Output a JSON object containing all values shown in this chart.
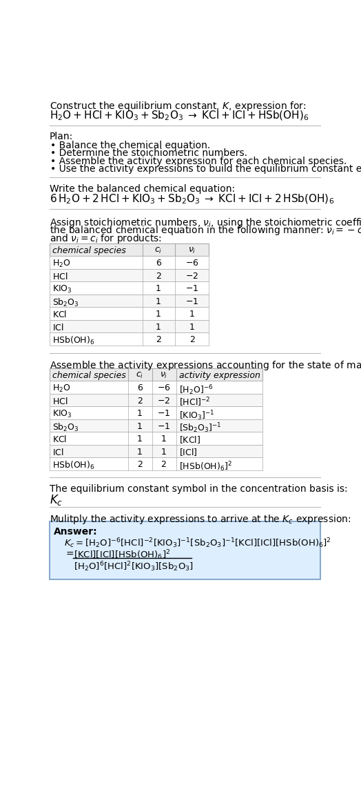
{
  "title_line1": "Construct the equilibrium constant, $K$, expression for:",
  "title_line2": "$\\mathrm{H_2O + HCl + KIO_3 + Sb_2O_3 \\;\\rightarrow\\; KCl + ICl + HSb(OH)_6}$",
  "plan_header": "Plan:",
  "plan_items": [
    "Balance the chemical equation.",
    "Determine the stoichiometric numbers.",
    "Assemble the activity expression for each chemical species.",
    "Use the activity expressions to build the equilibrium constant expression."
  ],
  "balanced_header": "Write the balanced chemical equation:",
  "balanced_eq": "$\\mathrm{6\\,H_2O + 2\\,HCl + KIO_3 + Sb_2O_3 \\;\\rightarrow\\; KCl + ICl + 2\\,HSb(OH)_6}$",
  "stoich_lines": [
    "Assign stoichiometric numbers, $\\nu_i$, using the stoichiometric coefficients, $c_i$, from",
    "the balanced chemical equation in the following manner: $\\nu_i = -c_i$ for reactants",
    "and $\\nu_i = c_i$ for products:"
  ],
  "table1_headers": [
    "chemical species",
    "$c_i$",
    "$\\nu_i$"
  ],
  "table1_data": [
    [
      "$\\mathrm{H_2O}$",
      "6",
      "$-6$"
    ],
    [
      "$\\mathrm{HCl}$",
      "2",
      "$-2$"
    ],
    [
      "$\\mathrm{KIO_3}$",
      "1",
      "$-1$"
    ],
    [
      "$\\mathrm{Sb_2O_3}$",
      "1",
      "$-1$"
    ],
    [
      "$\\mathrm{KCl}$",
      "1",
      "1"
    ],
    [
      "$\\mathrm{ICl}$",
      "1",
      "1"
    ],
    [
      "$\\mathrm{HSb(OH)_6}$",
      "2",
      "2"
    ]
  ],
  "activity_header": "Assemble the activity expressions accounting for the state of matter and $\\nu_i$:",
  "table2_headers": [
    "chemical species",
    "$c_i$",
    "$\\nu_i$",
    "activity expression"
  ],
  "table2_data": [
    [
      "$\\mathrm{H_2O}$",
      "6",
      "$-6$",
      "$[\\mathrm{H_2O}]^{-6}$"
    ],
    [
      "$\\mathrm{HCl}$",
      "2",
      "$-2$",
      "$[\\mathrm{HCl}]^{-2}$"
    ],
    [
      "$\\mathrm{KIO_3}$",
      "1",
      "$-1$",
      "$[\\mathrm{KIO_3}]^{-1}$"
    ],
    [
      "$\\mathrm{Sb_2O_3}$",
      "1",
      "$-1$",
      "$[\\mathrm{Sb_2O_3}]^{-1}$"
    ],
    [
      "$\\mathrm{KCl}$",
      "1",
      "1",
      "$[\\mathrm{KCl}]$"
    ],
    [
      "$\\mathrm{ICl}$",
      "1",
      "1",
      "$[\\mathrm{ICl}]$"
    ],
    [
      "$\\mathrm{HSb(OH)_6}$",
      "2",
      "2",
      "$[\\mathrm{HSb(OH)_6}]^2$"
    ]
  ],
  "kc_header": "The equilibrium constant symbol in the concentration basis is:",
  "kc_symbol": "$K_c$",
  "multiply_header": "Mulitply the activity expressions to arrive at the $K_c$ expression:",
  "answer_label": "Answer:",
  "answer_line1": "$K_c = [\\mathrm{H_2O}]^{-6}[\\mathrm{HCl}]^{-2}[\\mathrm{KIO_3}]^{-1}[\\mathrm{Sb_2O_3}]^{-1}[\\mathrm{KCl}][\\mathrm{ICl}][\\mathrm{HSb(OH)_6}]^2$",
  "answer_num": "$[\\mathrm{KCl}][\\mathrm{ICl}][\\mathrm{HSb(OH)_6}]^2$",
  "answer_den": "$[\\mathrm{H_2O}]^6[\\mathrm{HCl}]^2[\\mathrm{KIO_3}][\\mathrm{Sb_2O_3}]$",
  "bg_color": "#ffffff",
  "answer_box_bg": "#ddeeff",
  "answer_box_border": "#88aacc",
  "text_color": "#000000",
  "sep_color": "#bbbbbb",
  "table_hdr_bg": "#ebebeb",
  "table_border": "#aaaaaa",
  "font_size": 10.0,
  "small_font": 9.0
}
